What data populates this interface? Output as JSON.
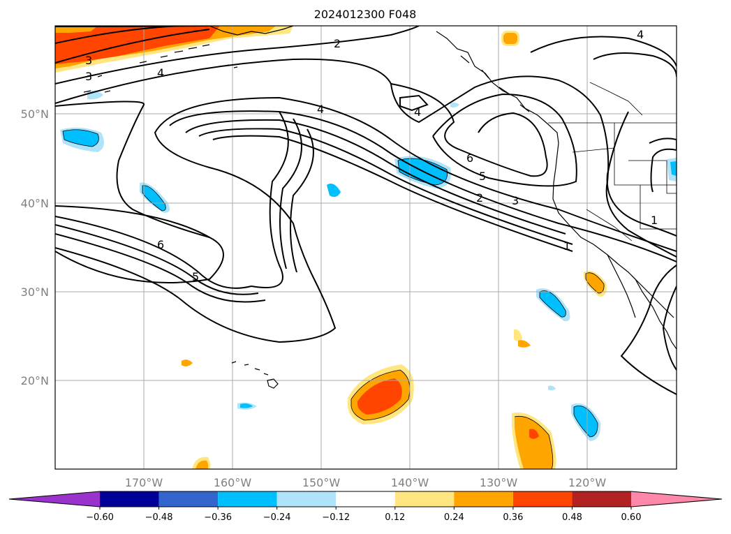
{
  "title": "2024012300 F048",
  "lat_labels": [
    "50°N",
    "40°N",
    "30°N",
    "20°N"
  ],
  "lon_labels": [
    "170°W",
    "160°W",
    "150°W",
    "140°W",
    "130°W",
    "120°W"
  ],
  "colorbar": {
    "ticks": [
      "−0.60",
      "−0.48",
      "−0.36",
      "−0.24",
      "−0.12",
      "0.12",
      "0.24",
      "0.36",
      "0.48",
      "0.60"
    ],
    "colors": [
      "#9933cc",
      "#000099",
      "#3366cc",
      "#00bfff",
      "#aee3f9",
      "#ffffff",
      "#ffe680",
      "#ffa500",
      "#ff4500",
      "#b22222",
      "#ff88aa"
    ]
  },
  "contour_labels": {
    "a": "3",
    "b": "3",
    "c": "4",
    "d": "2",
    "e": "4",
    "f": "4",
    "g": "6",
    "h": "5",
    "i": "2",
    "j": "3",
    "k": "4",
    "l": "6",
    "m": "5",
    "n": "1",
    "o": "1"
  }
}
